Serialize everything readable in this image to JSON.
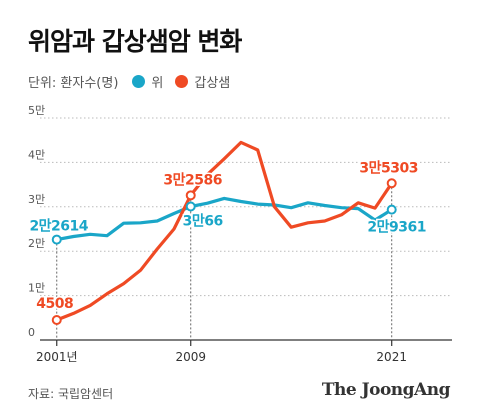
{
  "title": "위암과 갑상샘암 변화",
  "legend": {
    "unit": "단위: 환자수(명)",
    "items": [
      {
        "label": "위",
        "color": "#1aa6c8"
      },
      {
        "label": "갑상샘",
        "color": "#ef4a24"
      }
    ]
  },
  "source": "자료: 국립암센터",
  "brand": "The JoongAng",
  "chart_data": {
    "type": "line",
    "x": [
      2001,
      2002,
      2003,
      2004,
      2005,
      2006,
      2007,
      2008,
      2009,
      2010,
      2011,
      2012,
      2013,
      2014,
      2015,
      2016,
      2017,
      2018,
      2019,
      2020,
      2021
    ],
    "xticks": [
      2001,
      2009,
      2021
    ],
    "xtick_labels": [
      "2001년",
      "2009",
      "2021"
    ],
    "ylim": [
      0,
      50000
    ],
    "yticks": [
      0,
      10000,
      20000,
      30000,
      40000,
      50000
    ],
    "ytick_labels": [
      "0",
      "1만",
      "2만",
      "3만",
      "4만",
      "5만"
    ],
    "grid": "horizontal dotted",
    "series": [
      {
        "name": "위",
        "color": "#1aa6c8",
        "values": [
          22614,
          23300,
          23800,
          23500,
          26300,
          26400,
          26800,
          28500,
          30066,
          30800,
          31900,
          31200,
          30600,
          30400,
          29800,
          30900,
          30300,
          29800,
          29600,
          27000,
          29361
        ]
      },
      {
        "name": "갑상샘",
        "color": "#ef4a24",
        "values": [
          4508,
          6000,
          7800,
          10400,
          12700,
          15700,
          20500,
          25000,
          32586,
          37300,
          40800,
          44500,
          42800,
          30000,
          25400,
          26400,
          26800,
          28200,
          30900,
          29700,
          35303
        ]
      }
    ],
    "annotations": [
      {
        "series": 0,
        "index": 0,
        "text": "2만2614"
      },
      {
        "series": 0,
        "index": 8,
        "text": "3만66"
      },
      {
        "series": 0,
        "index": 20,
        "text": "2만9361"
      },
      {
        "series": 1,
        "index": 0,
        "text": "4508"
      },
      {
        "series": 1,
        "index": 8,
        "text": "3만2586"
      },
      {
        "series": 1,
        "index": 20,
        "text": "3만5303"
      }
    ]
  }
}
